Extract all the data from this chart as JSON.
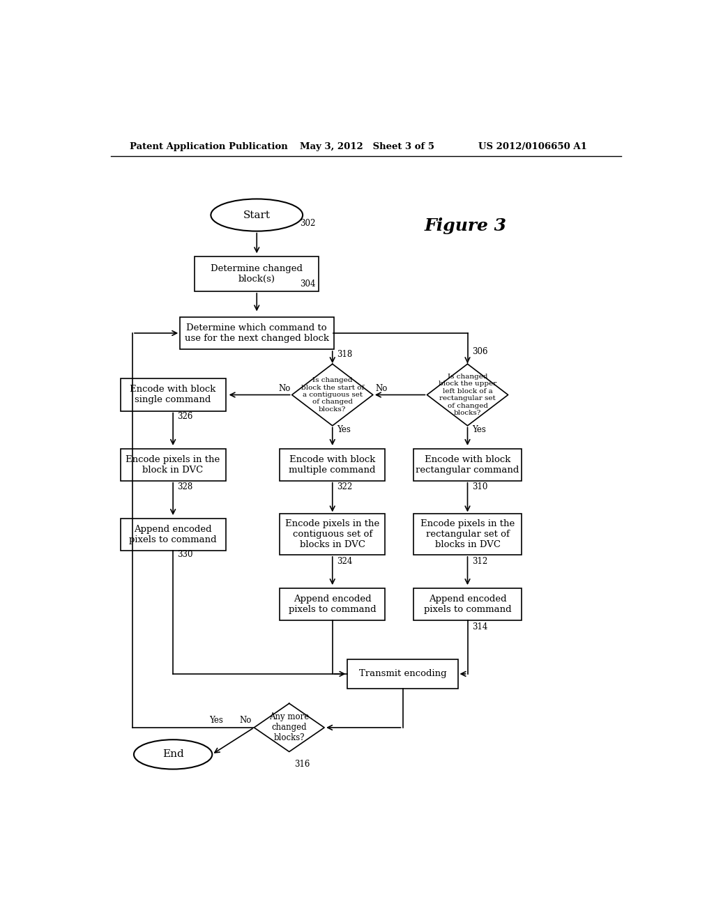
{
  "background_color": "#ffffff",
  "header_left": "Patent Application Publication",
  "header_mid": "May 3, 2012   Sheet 3 of 5",
  "header_right": "US 2012/0106650 A1",
  "figure_label": "Figure 3"
}
